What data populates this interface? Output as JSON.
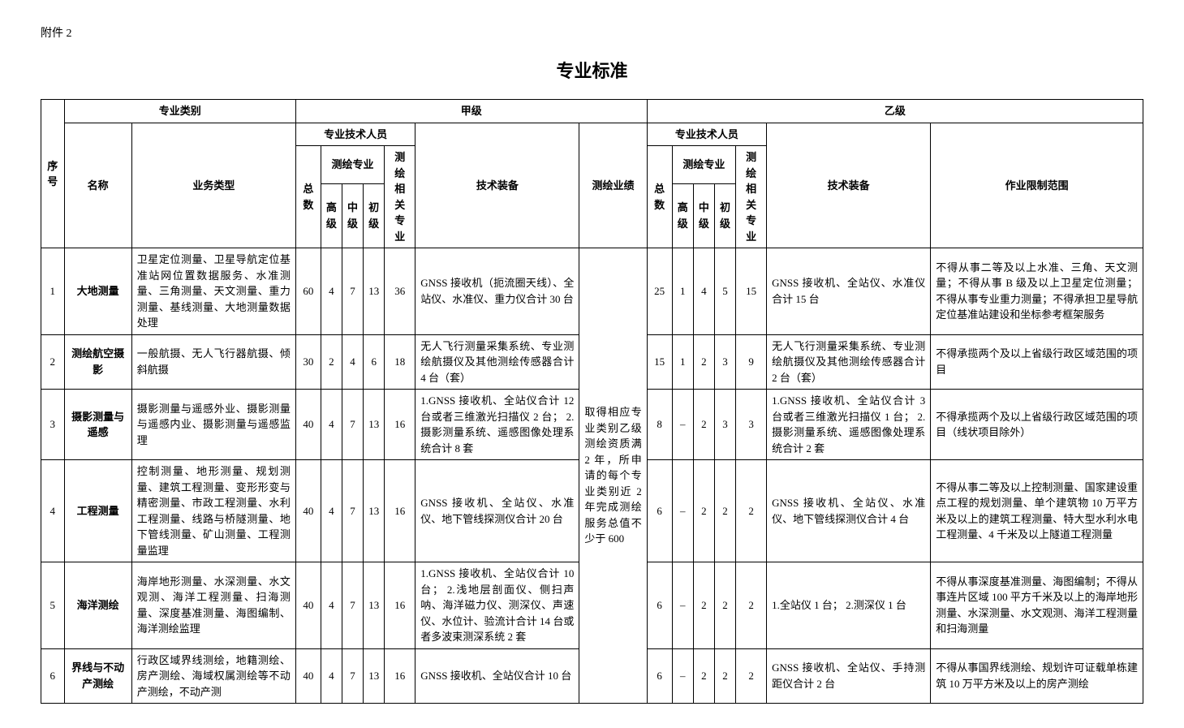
{
  "attachment_label": "附件 2",
  "title": "专业标准",
  "headers": {
    "seq": "序号",
    "category": "专业类别",
    "name": "名称",
    "biz_type": "业务类型",
    "grade_a": "甲级",
    "grade_b": "乙级",
    "pro_personnel": "专业技术人员",
    "total": "总数",
    "survey_major": "测绘专业",
    "senior": "高级",
    "middle": "中级",
    "junior": "初级",
    "related": "测绘相关专业",
    "equipment": "技术装备",
    "achievement": "测绘业绩",
    "limit": "作业限制范围"
  },
  "achievement_text": "取得相应专业类别乙级测绘资质满 2 年，所申请的每个专业类别近 2 年完成测绘服务总值不少于 600",
  "rows": [
    {
      "seq": "1",
      "name": "大地测量",
      "biz": "卫星定位测量、卫星导航定位基准站网位置数据服务、水准测量、三角测量、天文测量、重力测量、基线测量、大地测量数据处理",
      "a_total": "60",
      "a_senior": "4",
      "a_middle": "7",
      "a_junior": "13",
      "a_related": "36",
      "a_equip": "GNSS 接收机（扼流圈天线）、全站仪、水准仪、重力仪合计 30 台",
      "b_total": "25",
      "b_senior": "1",
      "b_middle": "4",
      "b_junior": "5",
      "b_related": "15",
      "b_equip": "GNSS 接收机、全站仪、水准仪合计 15 台",
      "b_limit": "不得从事二等及以上水准、三角、天文测量；不得从事 B 级及以上卫星定位测量；不得从事专业重力测量；不得承担卫星导航定位基准站建设和坐标参考框架服务"
    },
    {
      "seq": "2",
      "name": "测绘航空摄影",
      "biz": "一般航摄、无人飞行器航摄、倾斜航摄",
      "a_total": "30",
      "a_senior": "2",
      "a_middle": "4",
      "a_junior": "6",
      "a_related": "18",
      "a_equip": "无人飞行测量采集系统、专业测绘航摄仪及其他测绘传感器合计 4 台（套）",
      "b_total": "15",
      "b_senior": "1",
      "b_middle": "2",
      "b_junior": "3",
      "b_related": "9",
      "b_equip": "无人飞行测量采集系统、专业测绘航摄仪及其他测绘传感器合计 2 台（套）",
      "b_limit": "不得承揽两个及以上省级行政区域范围的项目"
    },
    {
      "seq": "3",
      "name": "摄影测量与遥感",
      "biz": "摄影测量与遥感外业、摄影测量与遥感内业、摄影测量与遥感监理",
      "a_total": "40",
      "a_senior": "4",
      "a_middle": "7",
      "a_junior": "13",
      "a_related": "16",
      "a_equip": "1.GNSS 接收机、全站仪合计 12 台或者三维激光扫描仪 2 台；\n2.摄影测量系统、遥感图像处理系统合计 8 套",
      "b_total": "8",
      "b_senior": "–",
      "b_middle": "2",
      "b_junior": "3",
      "b_related": "3",
      "b_equip": "1.GNSS 接收机、全站仪合计 3 台或者三维激光扫描仪 1 台；\n2.摄影测量系统、遥感图像处理系统合计 2 套",
      "b_limit": "不得承揽两个及以上省级行政区域范围的项目（线状项目除外）"
    },
    {
      "seq": "4",
      "name": "工程测量",
      "biz": "控制测量、地形测量、规划测量、建筑工程测量、变形形变与精密测量、市政工程测量、水利工程测量、线路与桥隧测量、地下管线测量、矿山测量、工程测量监理",
      "a_total": "40",
      "a_senior": "4",
      "a_middle": "7",
      "a_junior": "13",
      "a_related": "16",
      "a_equip": "GNSS 接收机、全站仪、水准仪、地下管线探测仪合计 20 台",
      "b_total": "6",
      "b_senior": "–",
      "b_middle": "2",
      "b_junior": "2",
      "b_related": "2",
      "b_equip": "GNSS 接收机、全站仪、水准仪、地下管线探测仪合计 4 台",
      "b_limit": "不得从事二等及以上控制测量、国家建设重点工程的规划测量、单个建筑物 10 万平方米及以上的建筑工程测量、特大型水利水电工程测量、4 千米及以上隧道工程测量"
    },
    {
      "seq": "5",
      "name": "海洋测绘",
      "biz": "海岸地形测量、水深测量、水文观测、海洋工程测量、扫海测量、深度基准测量、海图编制、海洋测绘监理",
      "a_total": "40",
      "a_senior": "4",
      "a_middle": "7",
      "a_junior": "13",
      "a_related": "16",
      "a_equip": "1.GNSS 接收机、全站仪合计 10 台；\n2.浅地层剖面仪、侧扫声呐、海洋磁力仪、测深仪、声速仪、水位计、验流计合计 14 台或者多波束测深系统 2 套",
      "b_total": "6",
      "b_senior": "–",
      "b_middle": "2",
      "b_junior": "2",
      "b_related": "2",
      "b_equip": "1.全站仪 1 台；\n2.测深仪 1 台",
      "b_limit": "不得从事深度基准测量、海图编制；不得从事连片区域 100 平方千米及以上的海岸地形测量、水深测量、水文观测、海洋工程测量和扫海测量"
    },
    {
      "seq": "6",
      "name": "界线与不动产测绘",
      "biz": "行政区域界线测绘，地籍测绘、房产测绘、海域权属测绘等不动产测绘，不动产测",
      "a_total": "40",
      "a_senior": "4",
      "a_middle": "7",
      "a_junior": "13",
      "a_related": "16",
      "a_equip": "GNSS 接收机、全站仪合计 10 台",
      "b_total": "6",
      "b_senior": "–",
      "b_middle": "2",
      "b_junior": "2",
      "b_related": "2",
      "b_equip": "GNSS 接收机、全站仪、手持测距仪合计 2 台",
      "b_limit": "不得从事国界线测绘、规划许可证载单栋建筑 10 万平方米及以上的房产测绘"
    }
  ]
}
